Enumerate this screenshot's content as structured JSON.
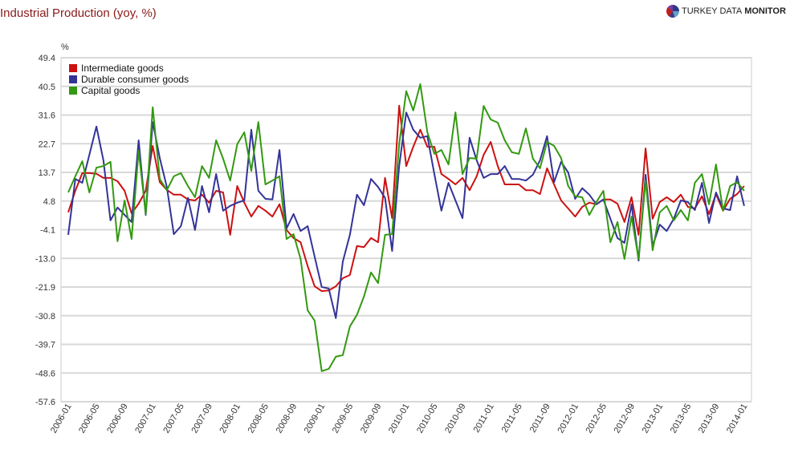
{
  "chart_data": {
    "type": "line",
    "title": "Industrial Production (yoy, %)",
    "ylabel": "%",
    "ylim": [
      -57.6,
      49.4
    ],
    "yticks": [
      "49.4",
      "40.5",
      "31.6",
      "22.7",
      "13.7",
      "4.8",
      "-4.1",
      "-13.0",
      "-21.9",
      "-30.8",
      "-39.7",
      "-48.6",
      "-57.6"
    ],
    "x_start": "2006-01",
    "x_end": "2014-01",
    "xticks": [
      "2006-01",
      "2006-05",
      "2006-09",
      "2007-01",
      "2007-05",
      "2007-09",
      "2008-01",
      "2008-05",
      "2008-09",
      "2009-01",
      "2009-05",
      "2009-09",
      "2010-01",
      "2010-05",
      "2010-09",
      "2011-01",
      "2011-05",
      "2011-09",
      "2012-01",
      "2012-05",
      "2012-09",
      "2013-01",
      "2013-05",
      "2013-09",
      "2014-01"
    ],
    "grid": true,
    "legend": "top-left",
    "series": [
      {
        "name": "Intermediate goods",
        "color": "#cc1111",
        "values": [
          1.3,
          8,
          13.5,
          13.5,
          13.3,
          12,
          12,
          11,
          8,
          1,
          4,
          8,
          22,
          10.7,
          8.3,
          6.8,
          6.8,
          5.3,
          5,
          6.8,
          4.3,
          8,
          7.5,
          -5.7,
          9.5,
          4.3,
          0,
          3.3,
          1.8,
          0,
          3.8,
          -4.2,
          -6.7,
          -8,
          -15.4,
          -21.7,
          -23.2,
          -23,
          -21.7,
          -19.2,
          -18.2,
          -9.2,
          -9.5,
          -6.7,
          -8,
          12,
          -0.5,
          34.5,
          15.7,
          21.7,
          27,
          21.7,
          21.7,
          13.2,
          11.7,
          10,
          12,
          8.2,
          12.5,
          19.2,
          23.2,
          15.7,
          10,
          10,
          10,
          8.2,
          8.2,
          7,
          15,
          10,
          5,
          2.5,
          0,
          3,
          4.3,
          3.8,
          5.3,
          5.3,
          4,
          -1.7,
          6,
          -5.7,
          21.2,
          -0.7,
          4.5,
          6,
          4.5,
          6.8,
          3,
          2.5,
          6.3,
          0.8,
          7,
          1.8,
          5.5,
          7,
          9.5
        ]
      },
      {
        "name": "Durable consumer goods",
        "color": "#333399",
        "values": [
          -5.7,
          11.7,
          10.5,
          19.2,
          28,
          17.5,
          -1.2,
          2.8,
          0.5,
          -1.7,
          23.7,
          0.5,
          29.4,
          18.2,
          9.2,
          -5.5,
          -3,
          5.8,
          -4.2,
          9.5,
          1.3,
          13.2,
          1.8,
          3.3,
          4.3,
          5,
          27,
          8,
          5.5,
          5.3,
          20.7,
          -3.7,
          0.8,
          -4.5,
          -3,
          -12.5,
          -21.9,
          -22.4,
          -31.6,
          -14,
          -5.7,
          6.8,
          3.5,
          11.7,
          9.2,
          5.8,
          -10.7,
          15.7,
          32.4,
          27,
          24.5,
          25,
          13.2,
          1.8,
          10.5,
          5,
          -0.5,
          24.5,
          17.5,
          12,
          13.2,
          13.2,
          15.7,
          11.7,
          11.7,
          11.2,
          13,
          17.5,
          25,
          10.7,
          17,
          13.7,
          5.5,
          8.8,
          6.8,
          3.8,
          5.3,
          -0.7,
          -6.7,
          -8.2,
          3.8,
          -13.7,
          13,
          -9.2,
          -2.5,
          -4.5,
          -0.7,
          5,
          4.5,
          2,
          10.5,
          -2,
          7.5,
          2.5,
          2,
          12.5,
          3.3
        ]
      },
      {
        "name": "Capital goods",
        "color": "#339911",
        "values": [
          7.5,
          12.5,
          17.2,
          7.5,
          15.2,
          15.7,
          17,
          -7.7,
          5,
          -7,
          20.5,
          0.8,
          34,
          11.7,
          8.2,
          12.5,
          13.5,
          9.5,
          6,
          15.7,
          12,
          23.7,
          18,
          11.2,
          22.5,
          26.2,
          14.2,
          29.4,
          10,
          11.2,
          12.5,
          -7,
          -5.5,
          -13.2,
          -29.2,
          -32.4,
          -48.1,
          -47.4,
          -43.6,
          -43.1,
          -34.2,
          -30.6,
          -24.9,
          -17.4,
          -20.7,
          -5.7,
          -5.5,
          22.5,
          39,
          33,
          41.2,
          26.2,
          19.5,
          20.7,
          16.2,
          32.4,
          13.2,
          18.2,
          18,
          34.4,
          30.2,
          29.2,
          23.7,
          20,
          19.5,
          27.4,
          18,
          15,
          23.2,
          22,
          18.2,
          9.5,
          6.3,
          6,
          0.5,
          4.5,
          8,
          -8,
          -1.7,
          -13.2,
          0,
          -13.2,
          11.2,
          -10.5,
          1.3,
          3.3,
          -1.2,
          2,
          -1.2,
          10.5,
          13.2,
          3.8,
          16.2,
          1.8,
          9.5,
          10.7,
          8
        ]
      }
    ]
  },
  "brand": {
    "name_light": "TURKEY DATA ",
    "name_bold": "MONITOR"
  }
}
